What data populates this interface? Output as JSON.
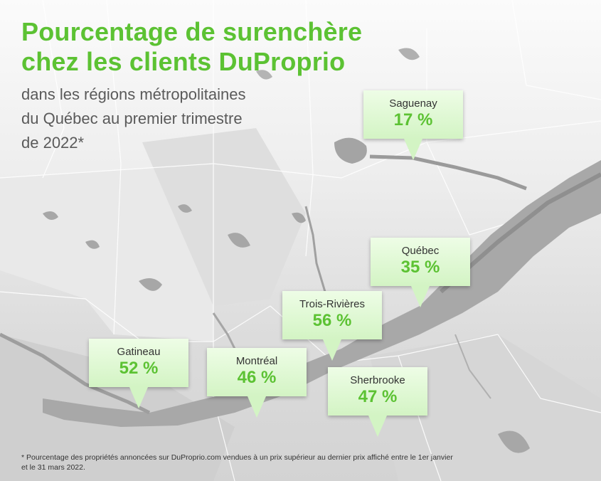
{
  "title_line1": "Pourcentage de surenchère",
  "title_line2": "chez les clients DuProprio",
  "subtitle_line1": "dans les régions métropolitaines",
  "subtitle_line2": "du Québec au premier trimestre",
  "subtitle_line3": "de 2022*",
  "colors": {
    "accent": "#5cc233",
    "callout_fill": "#d8f5ca",
    "map_land": "#e6e6e6",
    "water": "#9c9c9c"
  },
  "regions": [
    {
      "city": "Saguenay",
      "value": "17 %"
    },
    {
      "city": "Québec",
      "value": "35 %"
    },
    {
      "city": "Trois-Rivières",
      "value": "56 %"
    },
    {
      "city": "Gatineau",
      "value": "52 %"
    },
    {
      "city": "Montréal",
      "value": "46 %"
    },
    {
      "city": "Sherbrooke",
      "value": "47 %"
    }
  ],
  "footnote_line1": "* Pourcentage des propriétés annoncées sur DuProprio.com vendues à un prix supérieur au dernier prix affiché entre le 1er janvier",
  "footnote_line2": "et le 31 mars 2022."
}
